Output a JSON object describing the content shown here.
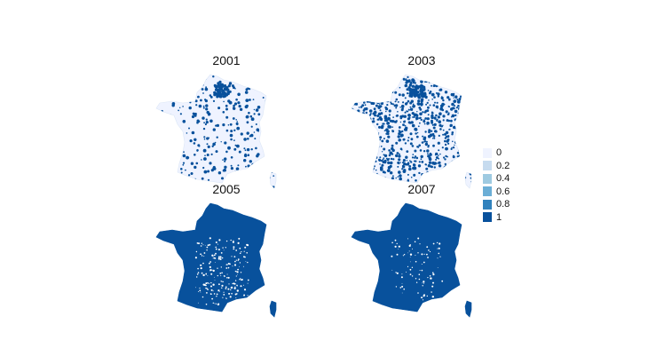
{
  "panels": [
    {
      "title": "2001",
      "coverage": 0.18
    },
    {
      "title": "2003",
      "coverage": 0.45
    },
    {
      "title": "2005",
      "coverage": 0.93
    },
    {
      "title": "2007",
      "coverage": 0.97
    }
  ],
  "legend": {
    "items": [
      {
        "label": "0",
        "color": "#eff3ff"
      },
      {
        "label": "0.2",
        "color": "#c6dbef"
      },
      {
        "label": "0.4",
        "color": "#9ecae1"
      },
      {
        "label": "0.6",
        "color": "#6baed6"
      },
      {
        "label": "0.8",
        "color": "#3182bd"
      },
      {
        "label": "1",
        "color": "#08519c"
      }
    ]
  },
  "colors": {
    "low": "#eff3ff",
    "high": "#08519c"
  }
}
